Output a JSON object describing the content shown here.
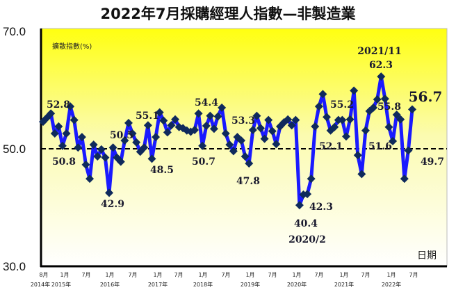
{
  "chart_data": {
    "type": "line",
    "title": "2022年7月採購經理人指數—非製造業",
    "ylabel": "擴散指數(%)",
    "xlabel": "日期",
    "ylim": [
      30,
      70
    ],
    "yticks": [
      "70.0",
      "50.0",
      "30.0"
    ],
    "reference_line": 50,
    "grid": false,
    "x_start": "2014-08",
    "x_end": "2022-07",
    "xtick_months": [
      "8月",
      "1月",
      "7月",
      "1月",
      "7月",
      "1月",
      "7月",
      "1月",
      "7月",
      "1月",
      "7月",
      "1月",
      "7月",
      "1月",
      "7月",
      "1月",
      "7月"
    ],
    "xtick_years": [
      "2014年",
      "2015年",
      "2016年",
      "2017年",
      "2018年",
      "2019年",
      "2020年",
      "2021年",
      "2022年"
    ],
    "series": [
      {
        "values": [
          54.6,
          55.3,
          56.0,
          52.6,
          53.8,
          50.5,
          52.6,
          57.2,
          54.9,
          50.2,
          52.0,
          47.3,
          44.9,
          50.7,
          48.7,
          49.9,
          48.5,
          42.5,
          50.2,
          48.5,
          47.8,
          51.4,
          54.4,
          52.6,
          51.1,
          49.5,
          50.2,
          54.0,
          48.3,
          52.0,
          56.2,
          54.8,
          52.8,
          54.0,
          55.0,
          53.7,
          53.5,
          53.1,
          52.9,
          53.2,
          56.0,
          50.5,
          53.9,
          55.6,
          53.4,
          55.5,
          57.0,
          52.6,
          50.7,
          49.6,
          52.0,
          51.4,
          48.7,
          47.5,
          53.2,
          55.6,
          53.5,
          51.7,
          54.9,
          53.0,
          50.8,
          53.8,
          54.5,
          55.0,
          54.0,
          54.9,
          40.4,
          42.2,
          42.3,
          44.9,
          53.8,
          57.2,
          59.3,
          55.4,
          53.1,
          53.7,
          54.9,
          54.9,
          52.1,
          55.0,
          59.9,
          48.9,
          45.7,
          53.1,
          56.4,
          57.0,
          58.4,
          62.3,
          58.5,
          53.7,
          51.3,
          55.8,
          55.0,
          44.9,
          49.7,
          56.7
        ]
      }
    ],
    "annotations": [
      "52.8",
      "50.8",
      "42.9",
      "50.5",
      "55.1",
      "48.5",
      "54.4",
      "50.7",
      "53.3",
      "47.8",
      "40.4",
      "2020/2",
      "42.3",
      "55.2",
      "52.1",
      "51.6",
      "2021/11",
      "62.3",
      "55.8",
      "56.7",
      "49.7"
    ],
    "colors": {
      "line": "#1a1aff",
      "marker": "#0f2a5c",
      "background_top": "#ffff00",
      "background_bottom": "#ffffff"
    }
  }
}
